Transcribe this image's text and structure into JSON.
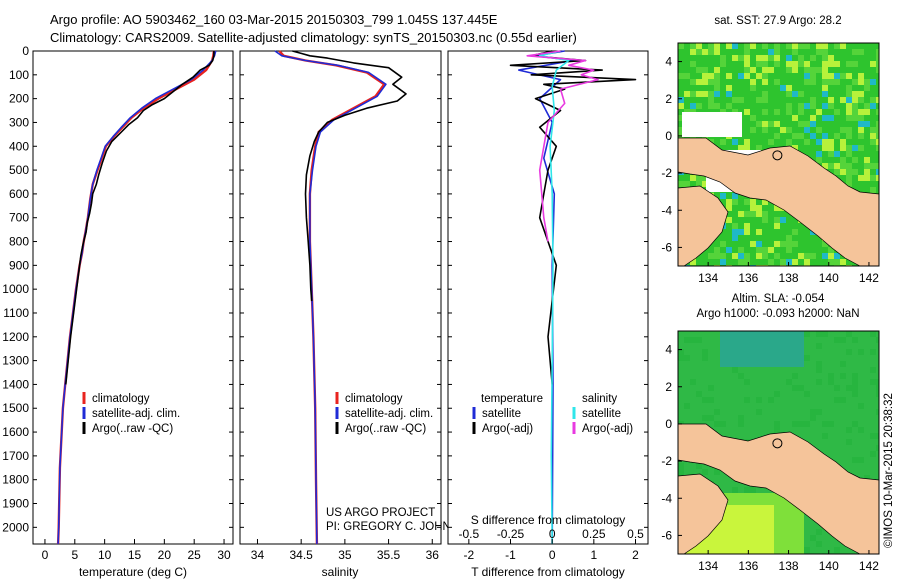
{
  "title": {
    "line1": "Argo profile: AO 5903462_160 03-Mar-2015 20150303_799 1.045S 137.445E",
    "line2": "Climatology: CARS2009. Satellite-adjusted climatology: synTS_20150303.nc (0.55d earlier)"
  },
  "colors": {
    "climatology": "#e8231f",
    "satellite": "#1f2bd6",
    "argo": "#000000",
    "sal_satellite": "#2fe6ea",
    "sal_argo": "#e83ae0",
    "land": "#f5c49a",
    "ocean_green": "#2ec42e",
    "ocean_yellow": "#b7f23b"
  },
  "shared_y": {
    "ylim": [
      0,
      2070
    ],
    "ticks": [
      "0",
      "100",
      "200",
      "300",
      "400",
      "500",
      "600",
      "700",
      "800",
      "900",
      "1000",
      "1100",
      "1200",
      "1300",
      "1400",
      "1500",
      "1600",
      "1700",
      "1800",
      "1900",
      "2000"
    ]
  },
  "chart_data": [
    {
      "type": "line",
      "id": "temperature",
      "xlabel": "temperature (deg C)",
      "xlim": [
        -2,
        31.5
      ],
      "xticks": [
        "0",
        "5",
        "10",
        "15",
        "20",
        "25",
        "30"
      ],
      "legend": {
        "position": "bottom-right",
        "entries": [
          "climatology",
          "satellite-adj. clim.",
          "Argo(..raw -QC)"
        ]
      },
      "series": [
        {
          "name": "climatology",
          "color_key": "climatology",
          "x": [
            28.3,
            28.2,
            28.0,
            27.0,
            25.0,
            22.0,
            19.0,
            16.5,
            14.5,
            13.0,
            11.5,
            10.2,
            9.5,
            8.8,
            8.0,
            7.6,
            7.2,
            6.8,
            6.5,
            6.2,
            5.8,
            5.2,
            4.7,
            4.2,
            3.8,
            3.4,
            3.0,
            2.5,
            2.3,
            2.2
          ],
          "y": [
            0,
            20,
            40,
            80,
            120,
            160,
            200,
            240,
            280,
            320,
            360,
            400,
            450,
            500,
            560,
            620,
            700,
            760,
            800,
            850,
            900,
            1000,
            1100,
            1200,
            1300,
            1400,
            1500,
            1750,
            2000,
            2070
          ]
        },
        {
          "name": "satellite-adj. clim.",
          "color_key": "satellite",
          "x": [
            28.6,
            28.4,
            28.0,
            26.5,
            24.5,
            21.5,
            18.5,
            16.2,
            14.3,
            12.8,
            11.4,
            10.1,
            9.4,
            8.7,
            8.0,
            7.6,
            7.2,
            6.8,
            6.5,
            6.2,
            5.8,
            5.2,
            4.7,
            4.2,
            3.8,
            3.4,
            3.0,
            2.5,
            2.3,
            2.2
          ],
          "y": [
            0,
            20,
            40,
            80,
            120,
            160,
            200,
            240,
            280,
            320,
            360,
            400,
            450,
            500,
            560,
            620,
            700,
            760,
            800,
            850,
            900,
            1000,
            1100,
            1200,
            1300,
            1400,
            1500,
            1750,
            2000,
            2070
          ]
        },
        {
          "name": "Argo(..raw -QC)",
          "color_key": "argo",
          "x": [
            28.3,
            28.3,
            28.1,
            27.5,
            26.0,
            24.8,
            23.0,
            21.5,
            20.0,
            18.0,
            16.5,
            15.5,
            14.0,
            12.8,
            11.2,
            10.3,
            9.6,
            9.0,
            8.6,
            8.0,
            7.8,
            7.5,
            7.1,
            6.9,
            6.6,
            6.3,
            6.0,
            5.8,
            5.3,
            4.8,
            4.3,
            3.9,
            3.5
          ],
          "y": [
            0,
            20,
            40,
            60,
            80,
            110,
            140,
            170,
            200,
            225,
            250,
            280,
            310,
            340,
            380,
            420,
            470,
            520,
            560,
            600,
            640,
            680,
            720,
            760,
            790,
            820,
            860,
            900,
            1000,
            1100,
            1200,
            1300,
            1400
          ]
        }
      ]
    },
    {
      "type": "line",
      "id": "salinity",
      "xlabel": "salinity",
      "xlim": [
        33.8,
        36.1
      ],
      "xticks": [
        "34",
        "34.5",
        "35",
        "35.5",
        "36"
      ],
      "legend": {
        "position": "bottom-right",
        "entries": [
          "climatology",
          "satellite-adj. clim.",
          "Argo(..raw -QC)"
        ]
      },
      "annotation": [
        "US ARGO PROJECT",
        "PI: GREGORY C. JOHNSON"
      ],
      "series": [
        {
          "name": "climatology",
          "color_key": "climatology",
          "x": [
            34.25,
            34.3,
            34.55,
            34.9,
            35.25,
            35.45,
            35.35,
            35.1,
            34.85,
            34.7,
            34.66,
            34.62,
            34.6,
            34.6,
            34.62,
            34.64,
            34.66,
            34.67,
            34.68
          ],
          "y": [
            0,
            20,
            40,
            60,
            90,
            140,
            190,
            240,
            290,
            340,
            400,
            500,
            600,
            800,
            1000,
            1200,
            1500,
            1800,
            2070
          ]
        },
        {
          "name": "satellite-adj. clim.",
          "color_key": "satellite",
          "x": [
            34.2,
            34.28,
            34.55,
            34.92,
            35.27,
            35.47,
            35.37,
            35.12,
            34.87,
            34.72,
            34.67,
            34.63,
            34.6,
            34.6,
            34.62,
            34.64,
            34.66,
            34.67,
            34.68
          ],
          "y": [
            0,
            20,
            40,
            60,
            90,
            140,
            190,
            240,
            290,
            340,
            400,
            500,
            600,
            800,
            1000,
            1200,
            1500,
            1800,
            2070
          ]
        },
        {
          "name": "Argo(..raw -QC)",
          "color_key": "argo",
          "x": [
            34.4,
            34.5,
            34.6,
            34.8,
            35.1,
            35.5,
            35.65,
            35.55,
            35.7,
            35.6,
            35.25,
            35.0,
            34.8,
            34.7,
            34.65,
            34.6,
            34.56,
            34.55,
            34.56,
            34.58,
            34.6,
            34.61,
            34.62
          ],
          "y": [
            0,
            10,
            20,
            30,
            50,
            70,
            110,
            140,
            180,
            210,
            240,
            270,
            300,
            340,
            380,
            440,
            520,
            600,
            700,
            800,
            900,
            1000,
            1050
          ]
        }
      ]
    },
    {
      "type": "line",
      "id": "difference",
      "xlabel": "T difference from climatology",
      "xlabel_top": "S difference from climatology",
      "xlim": [
        -2.5,
        2.3
      ],
      "xticks": [
        "-2",
        "-1",
        "0",
        "1",
        "2"
      ],
      "xticks_top": [
        "-0.5",
        "-0.25",
        "0",
        "0.25",
        "0.5"
      ],
      "legend": {
        "position": "top",
        "temperature_title": "temperature",
        "salinity_title": "salinity",
        "entries": [
          "satellite",
          "Argo(-adj)",
          "satellite",
          "Argo(-adj)"
        ]
      },
      "series": [
        {
          "name": "T satellite",
          "color_key": "satellite",
          "x": [
            0.3,
            -0.4,
            0.5,
            -0.8,
            0.2,
            -0.3,
            0.0,
            -0.2,
            0.05,
            0.0,
            0.02,
            0.0
          ],
          "y": [
            0,
            20,
            40,
            80,
            120,
            200,
            300,
            450,
            600,
            900,
            1400,
            2070
          ]
        },
        {
          "name": "T Argo(-adj)",
          "color_key": "argo",
          "x": [
            0.0,
            -0.5,
            0.8,
            -1.0,
            1.2,
            -0.5,
            2.0,
            -0.2,
            0.3,
            -0.4,
            0.2,
            -0.3,
            0.1,
            -0.1,
            -0.2,
            -0.3,
            -0.1,
            0.1,
            -0.1,
            0.0
          ],
          "y": [
            0,
            20,
            40,
            60,
            80,
            100,
            120,
            140,
            160,
            200,
            250,
            320,
            400,
            500,
            600,
            700,
            800,
            900,
            1200,
            1400
          ]
        },
        {
          "name": "S satellite",
          "color_key": "sal_satellite",
          "x": [
            0.2,
            -0.3,
            0.4,
            0.1,
            0.0,
            0.05,
            -0.05,
            0.0,
            0.02,
            0.0,
            -0.02,
            0.0
          ],
          "y": [
            0,
            20,
            40,
            80,
            150,
            250,
            400,
            600,
            900,
            1300,
            1700,
            2070
          ]
        },
        {
          "name": "S Argo(-adj)",
          "color_key": "sal_argo",
          "x": [
            0.2,
            -0.6,
            0.8,
            0.4,
            1.0,
            0.7,
            1.1,
            0.2,
            0.3,
            -0.1,
            -0.3,
            -0.2,
            -0.1
          ],
          "y": [
            0,
            20,
            40,
            60,
            80,
            100,
            120,
            160,
            220,
            300,
            500,
            700,
            800
          ]
        }
      ]
    },
    {
      "type": "heatmap",
      "id": "sst-map",
      "title": "sat. SST: 27.9 Argo: 28.2",
      "xlim": [
        132.5,
        142.5
      ],
      "ylim": [
        -7,
        5
      ],
      "xticks": [
        "134",
        "136",
        "138",
        "140",
        "142"
      ],
      "yticks": [
        "4",
        "2",
        "0",
        "-2",
        "-4",
        "-6"
      ],
      "marker": {
        "lon": 137.445,
        "lat": -1.045
      }
    },
    {
      "type": "heatmap",
      "id": "sla-map",
      "title_line1": "Altim. SLA: -0.054",
      "title_line2": "Argo h1000: -0.093 h2000: NaN",
      "xlim": [
        132.5,
        142.5
      ],
      "ylim": [
        -7,
        5
      ],
      "xticks": [
        "134",
        "136",
        "138",
        "140",
        "142"
      ],
      "yticks": [
        "4",
        "2",
        "0",
        "-2",
        "-4",
        "-6"
      ],
      "marker": {
        "lon": 137.445,
        "lat": -1.045
      }
    }
  ],
  "stamp": "©IMOS 10-Mar-2015 20:38:32"
}
